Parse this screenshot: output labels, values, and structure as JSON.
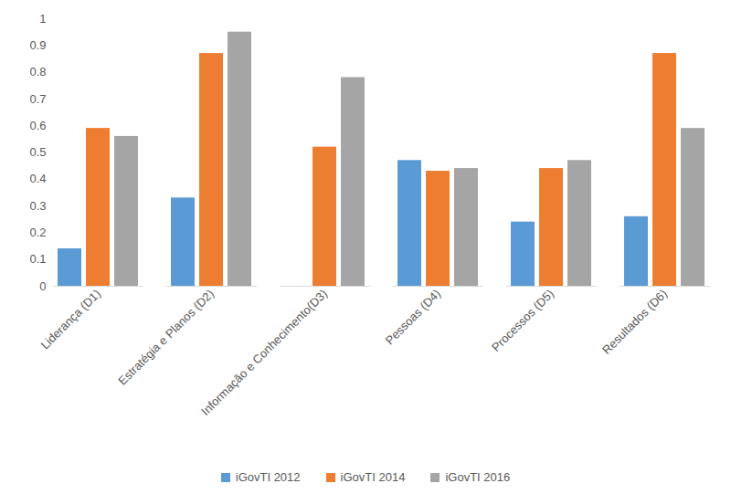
{
  "chart_data": {
    "type": "bar",
    "categories": [
      "Liderança (D1)",
      "Estratégia e Planos (D2)",
      "Informação e Conhecimento(D3)",
      "Pessoas (D4)",
      "Processos (D5)",
      "Resultados (D6)"
    ],
    "series": [
      {
        "name": "iGovTI 2012",
        "color": "#5b9bd5",
        "values": [
          0.14,
          0.33,
          null,
          0.47,
          0.24,
          0.26
        ]
      },
      {
        "name": "iGovTI 2014",
        "color": "#ed7d31",
        "values": [
          0.59,
          0.87,
          0.52,
          0.43,
          0.44,
          0.87
        ]
      },
      {
        "name": "iGovTI 2016",
        "color": "#a5a5a5",
        "values": [
          0.56,
          0.95,
          0.78,
          0.44,
          0.47,
          0.59
        ]
      }
    ],
    "ylim": [
      0,
      1
    ],
    "yticks": [
      0,
      0.1,
      0.2,
      0.3,
      0.4,
      0.5,
      0.6,
      0.7,
      0.8,
      0.9,
      1
    ],
    "grid": false,
    "legend": "bottom"
  }
}
